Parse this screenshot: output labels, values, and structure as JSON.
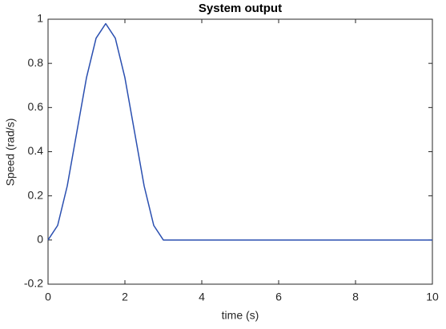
{
  "chart_data": {
    "type": "line",
    "title": "System output",
    "xlabel": "time (s)",
    "ylabel": "Speed (rad/s)",
    "x": [
      0,
      0.25,
      0.5,
      0.75,
      1,
      1.25,
      1.5,
      1.75,
      2,
      2.25,
      2.5,
      2.75,
      3,
      10
    ],
    "values": [
      0,
      0.066,
      0.245,
      0.49,
      0.735,
      0.914,
      0.98,
      0.914,
      0.735,
      0.49,
      0.245,
      0.066,
      0,
      0
    ],
    "color": "#2a4fb0",
    "xlim": [
      0,
      10
    ],
    "xticks": [
      0,
      2,
      4,
      6,
      8,
      10
    ],
    "ylim": [
      -0.2,
      1
    ],
    "yticks": [
      -0.2,
      0,
      0.2,
      0.4,
      0.6,
      0.8,
      1
    ],
    "grid": false
  }
}
